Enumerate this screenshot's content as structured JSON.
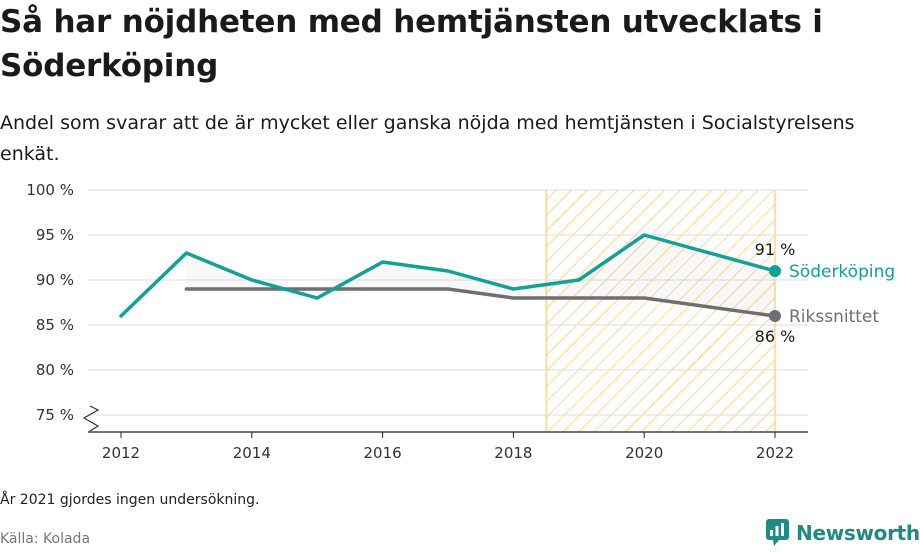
{
  "title": "Så har nöjdheten med hemtjänsten utvecklats i Söderköping",
  "subtitle": "Andel som svarar att de är mycket eller ganska nöjda med hemtjänsten i Socialstyrelsens enkät.",
  "note": "År 2021 gjordes ingen undersökning.",
  "source": "Källa: Kolada",
  "brand": {
    "name": "Newsworthy",
    "icon": "newsworthy-chart-bubble-icon",
    "color": "#1f8a86"
  },
  "chart_data": {
    "type": "line",
    "ylim": [
      75,
      100
    ],
    "xlim": [
      2012,
      2022
    ],
    "y_ticks": [
      75,
      80,
      85,
      90,
      95,
      100
    ],
    "y_tick_labels": [
      "75 %",
      "80 %",
      "85 %",
      "90 %",
      "95 %",
      "100 %"
    ],
    "x_ticks": [
      2012,
      2014,
      2016,
      2018,
      2020,
      2022
    ],
    "x_tick_labels": [
      "2012",
      "2014",
      "2016",
      "2018",
      "2020",
      "2022"
    ],
    "grid": "horizontal",
    "axis_break": true,
    "highlight_range": [
      2018.5,
      2022
    ],
    "highlight_color": "#f5c451",
    "series": [
      {
        "name": "Söderköping",
        "color": "#13a095",
        "points": [
          [
            2012,
            86
          ],
          [
            2013,
            93
          ],
          [
            2014,
            90
          ],
          [
            2015,
            88
          ],
          [
            2016,
            92
          ],
          [
            2017,
            91
          ],
          [
            2018,
            89
          ],
          [
            2019,
            90
          ],
          [
            2020,
            95
          ],
          [
            2022,
            91
          ]
        ],
        "end_label": "91 %"
      },
      {
        "name": "Rikssnittet",
        "color": "#6e6e73",
        "points": [
          [
            2013,
            89
          ],
          [
            2014,
            89
          ],
          [
            2015,
            89
          ],
          [
            2016,
            89
          ],
          [
            2017,
            89
          ],
          [
            2018,
            88
          ],
          [
            2019,
            88
          ],
          [
            2020,
            88
          ],
          [
            2022,
            86
          ]
        ],
        "end_label": "86 %"
      }
    ]
  }
}
